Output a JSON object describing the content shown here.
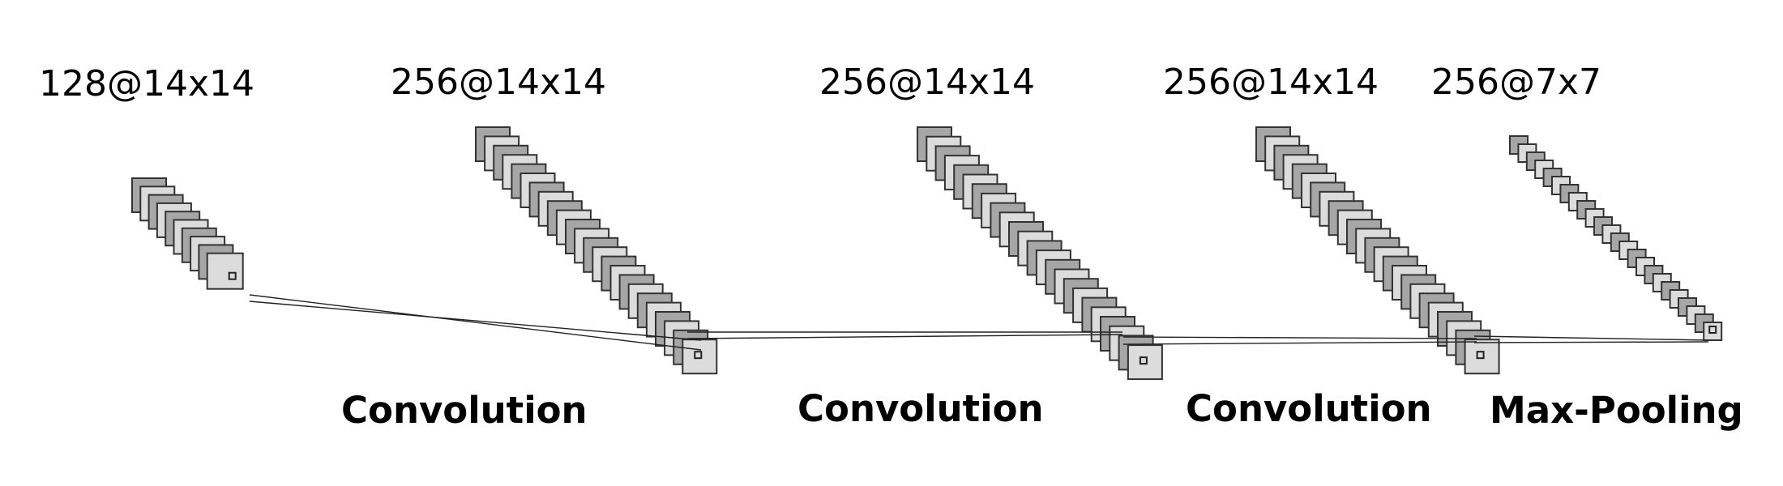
{
  "layers": [
    {
      "label": "128@14x14"
    },
    {
      "label": "256@14x14"
    },
    {
      "label": "256@14x14"
    },
    {
      "label": "256@14x14"
    },
    {
      "label": "256@7x7"
    }
  ],
  "operations": [
    {
      "label": "Convolution"
    },
    {
      "label": "Convolution"
    },
    {
      "label": "Convolution"
    },
    {
      "label": "Max-Pooling"
    }
  ],
  "colors": {
    "map_dark": "#a6a6a6",
    "map_light": "#dcdcdc",
    "stroke": "#333333"
  }
}
